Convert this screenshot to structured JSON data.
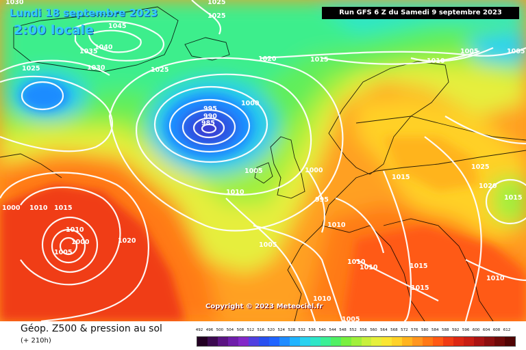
{
  "header": {
    "date_title": "Lundi 18 septembre 2023",
    "time_title": "2:00 locale",
    "run_info": "Run GFS 6 Z du Samedi 9 septembre 2023"
  },
  "footer": {
    "variable_title": "Géop. Z500 & pression au sol",
    "lead_time": "(+ 210h)",
    "copyright": "Copyright © 2023 Meteociel.fr"
  },
  "colors": {
    "title_text": "#35c8ff",
    "isobar": "#ffffff",
    "land_outline": "#000000"
  },
  "legend": {
    "unit_note": "",
    "ticks": [
      "492",
      "496",
      "500",
      "504",
      "508",
      "512",
      "516",
      "520",
      "524",
      "528",
      "532",
      "536",
      "540",
      "544",
      "548",
      "552",
      "556",
      "560",
      "564",
      "568",
      "572",
      "576",
      "580",
      "584",
      "588",
      "592",
      "596",
      "600",
      "604",
      "608",
      "612"
    ],
    "swatch_colors": [
      "#220022",
      "#3c0a50",
      "#5a1482",
      "#6e1eaa",
      "#8228c8",
      "#5040e0",
      "#2850f0",
      "#1e64ff",
      "#1e8cff",
      "#20b4ff",
      "#28d2f0",
      "#2ee6c8",
      "#3cf096",
      "#50f064",
      "#78f040",
      "#a0f03c",
      "#c8f03c",
      "#e6f03c",
      "#fae632",
      "#ffd228",
      "#ffb41e",
      "#ff961e",
      "#ff7814",
      "#ff5a14",
      "#f03c14",
      "#dc2814",
      "#c81e14",
      "#aa1414",
      "#8c0f10",
      "#6e0a0a",
      "#500505"
    ]
  },
  "map": {
    "isobar_labels": [
      {
        "text": "1045"
      },
      {
        "text": "1040"
      },
      {
        "text": "1035"
      },
      {
        "text": "1030"
      },
      {
        "text": "1025"
      },
      {
        "text": "1025"
      },
      {
        "text": "1025"
      },
      {
        "text": "1025"
      },
      {
        "text": "1030"
      },
      {
        "text": "1020"
      },
      {
        "text": "1015"
      },
      {
        "text": "1010"
      },
      {
        "text": "1005"
      },
      {
        "text": "1005"
      },
      {
        "text": "1000"
      },
      {
        "text": "995"
      },
      {
        "text": "990"
      },
      {
        "text": "985"
      },
      {
        "text": "1005"
      },
      {
        "text": "1000"
      },
      {
        "text": "995"
      },
      {
        "text": "1010"
      },
      {
        "text": "1015"
      },
      {
        "text": "1020"
      },
      {
        "text": "1010"
      },
      {
        "text": "1000"
      },
      {
        "text": "1005"
      },
      {
        "text": "1010"
      },
      {
        "text": "1005"
      },
      {
        "text": "1010"
      },
      {
        "text": "1010"
      },
      {
        "text": "1015"
      },
      {
        "text": "1025"
      },
      {
        "text": "1020"
      },
      {
        "text": "1015"
      },
      {
        "text": "1010"
      },
      {
        "text": "1015"
      },
      {
        "text": "1010"
      },
      {
        "text": "1005"
      },
      {
        "text": "1010"
      },
      {
        "text": "1000"
      },
      {
        "text": "1015"
      }
    ]
  }
}
